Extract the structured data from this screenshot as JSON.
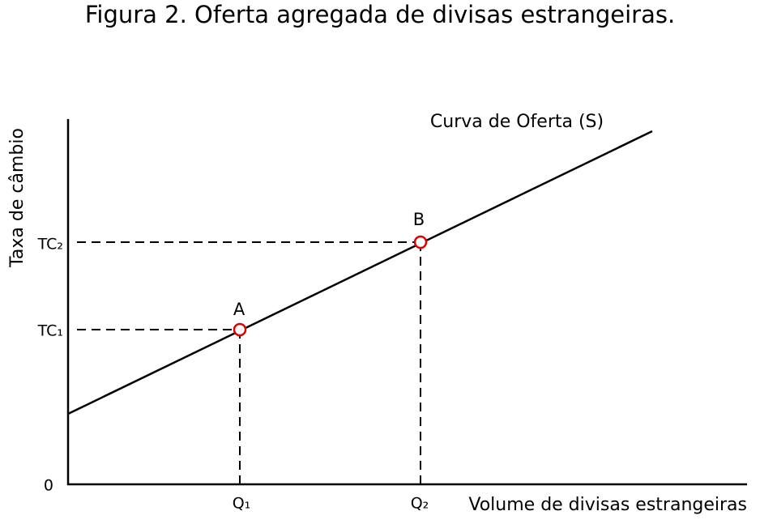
{
  "title": "Figura 2. Oferta agregada de divisas estrangeiras.",
  "y_axis_label": "Taxa de câmbio",
  "x_axis_label": "Volume de divisas estrangeiras",
  "origin_label": "0",
  "curve_label": "Curva de Oferta (S)",
  "points": [
    {
      "label": "A",
      "x_label": "Q₁",
      "y_label": "TC₁"
    },
    {
      "label": "B",
      "x_label": "Q₂",
      "y_label": "TC₂"
    }
  ]
}
